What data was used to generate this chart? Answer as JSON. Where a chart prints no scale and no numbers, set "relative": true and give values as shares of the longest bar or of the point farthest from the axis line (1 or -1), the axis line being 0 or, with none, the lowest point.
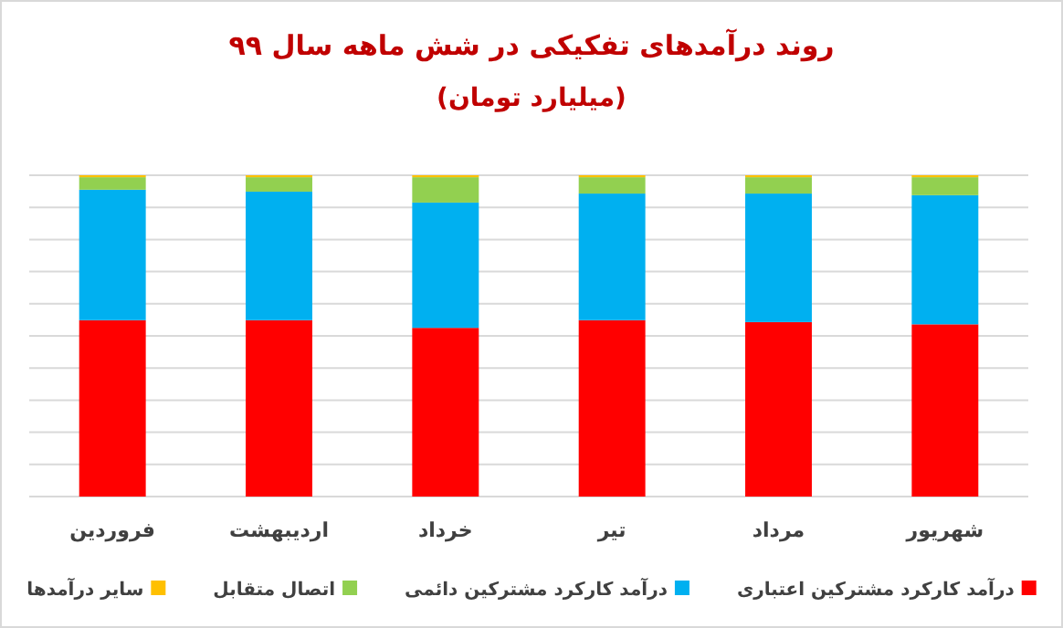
{
  "chart_data": {
    "type": "bar",
    "title": "روند درآمدهای تفکیکی در شش ماهه سال ۹۹",
    "subtitle": "(میلیارد تومان)",
    "categories": [
      "فروردین",
      "اردیبهشت",
      "خرداد",
      "تیر",
      "مرداد",
      "شهریور"
    ],
    "stacked": true,
    "relative": true,
    "grid": "y",
    "legend": "bottom",
    "series": [
      {
        "name": "درآمد کارکرد مشترکین اعتباری",
        "color": "#ff0000",
        "values": [
          0.549,
          0.549,
          0.525,
          0.549,
          0.543,
          0.536
        ]
      },
      {
        "name": "درآمد کارکرد مشترکین دائمی",
        "color": "#00b0f0",
        "values": [
          0.406,
          0.4,
          0.39,
          0.394,
          0.4,
          0.402
        ]
      },
      {
        "name": "اتصال متقابل",
        "color": "#92d050",
        "values": [
          0.039,
          0.045,
          0.079,
          0.051,
          0.051,
          0.056
        ]
      },
      {
        "name": "سایر درآمدها",
        "color": "#ffc000",
        "values": [
          0.006,
          0.006,
          0.006,
          0.006,
          0.006,
          0.006
        ]
      }
    ]
  }
}
